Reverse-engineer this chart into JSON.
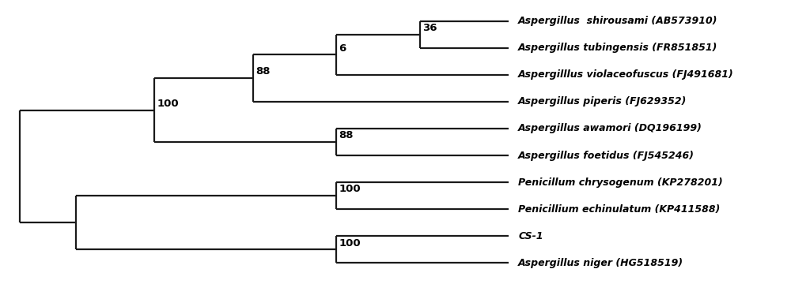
{
  "taxa": [
    {
      "name": "Aspergillus  shirousami (AB573910)",
      "y": 10
    },
    {
      "name": "Aspergillus tubingensis (FR851851)",
      "y": 9
    },
    {
      "name": "Aspergilllus violaceofuscus (FJ491681)",
      "y": 8
    },
    {
      "name": "Aspergillus piperis (FJ629352)",
      "y": 7
    },
    {
      "name": "Aspergillus awamori (DQ196199)",
      "y": 6
    },
    {
      "name": "Aspergillus foetidus (FJ545246)",
      "y": 5
    },
    {
      "name": "Penicillum chrysogenum (KP278201)",
      "y": 4
    },
    {
      "name": "Penicillium echinulatum (KP411588)",
      "y": 3
    },
    {
      "name": "CS-1",
      "y": 2
    },
    {
      "name": "Aspergillus niger (HG518519)",
      "y": 1
    }
  ],
  "bg_color": "#ffffff",
  "line_color": "#1a1a1a",
  "text_color": "#000000",
  "font_size": 9.0,
  "label_font_size": 9.5,
  "lw": 1.6,
  "tip_x": 10.0,
  "xlim": [
    -0.3,
    15.5
  ],
  "ylim": [
    0.3,
    10.7
  ]
}
